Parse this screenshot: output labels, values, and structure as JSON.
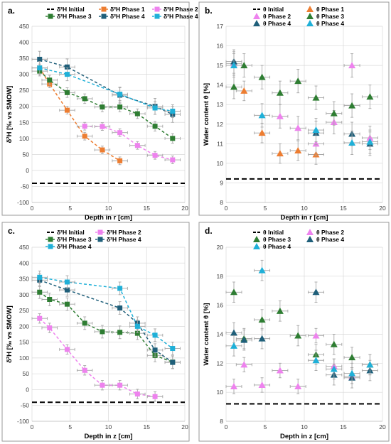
{
  "chart_data": [
    {
      "panel": "a.",
      "type": "line",
      "xlabel": "Depth in r [cm]",
      "ylabel": "δ²H [‰ vs SMOW]",
      "xlim": [
        0,
        20
      ],
      "ylim": [
        -100,
        450
      ],
      "xticks": [
        "0",
        "5",
        "10",
        "15",
        "20"
      ],
      "yticks": [
        "-100",
        "-50",
        "0",
        "50",
        "100",
        "150",
        "200",
        "250",
        "300",
        "350",
        "400",
        "450"
      ],
      "grid": true,
      "legend_position": "top",
      "initial": {
        "label": "δ²H Initial",
        "value": -40
      },
      "series": [
        {
          "name": "δ²H Phase 1",
          "color": "#ed7d31",
          "marker": "square",
          "x": [
            1,
            2.3,
            4.6,
            6.9,
            9.2,
            11.5
          ],
          "y": [
            320,
            270,
            188,
            107,
            64,
            30
          ],
          "xerr": 1,
          "yerr": 12
        },
        {
          "name": "δ²H Phase 2",
          "color": "#ee82ee",
          "marker": "square",
          "x": [
            6.9,
            9.2,
            11.5,
            13.8,
            16.1,
            18.4
          ],
          "y": [
            138,
            137,
            118,
            78,
            47,
            33
          ],
          "xerr": 1,
          "yerr": 12
        },
        {
          "name": "δ²H Phase 3",
          "color": "#2e7d32",
          "marker": "square",
          "x": [
            1,
            2.3,
            4.6,
            6.9,
            9.2,
            11.5,
            13.8,
            16.1,
            18.4
          ],
          "y": [
            310,
            282,
            243,
            224,
            198,
            198,
            177,
            138,
            100
          ],
          "xerr": 1,
          "yerr": 15
        },
        {
          "name": "δ²H Phase 4",
          "color": "#1f5f7a",
          "marker": "square",
          "x": [
            1,
            4.6,
            11.5,
            16.1,
            18.4
          ],
          "y": [
            347,
            323,
            235,
            200,
            175
          ],
          "xerr": 1,
          "yerr": 25
        },
        {
          "name": "δ²H Phase 4",
          "color": "#1fb0d8",
          "marker": "square",
          "x": [
            1,
            4.6,
            11.5,
            16.1,
            18.4
          ],
          "y": [
            320,
            300,
            238,
            195,
            185
          ],
          "xerr": 1,
          "yerr": 20
        }
      ]
    },
    {
      "panel": "b.",
      "type": "scatter",
      "xlabel": "Depth in r [cm]",
      "ylabel": "Water content θ [%]",
      "xlim": [
        0,
        20
      ],
      "ylim": [
        8,
        17
      ],
      "xticks": [
        "0",
        "5",
        "10",
        "15",
        "20"
      ],
      "yticks": [
        "8",
        "9",
        "10",
        "11",
        "12",
        "13",
        "14",
        "15",
        "16",
        "17"
      ],
      "grid": true,
      "legend_position": "top",
      "initial": {
        "label": "θ Initial",
        "value": 9.2
      },
      "series": [
        {
          "name": "θ Phase 1",
          "color": "#ed7d31",
          "marker": "triangle",
          "x": [
            2.3,
            4.6,
            6.9,
            9.2,
            11.5
          ],
          "y": [
            13.7,
            11.55,
            10.5,
            10.65,
            10.45
          ],
          "xerr": 1,
          "yerr": 0.5
        },
        {
          "name": "θ Phase 2",
          "color": "#ee82ee",
          "marker": "triangle",
          "x": [
            1,
            6.9,
            9.2,
            11.5,
            13.8,
            16.1,
            18.4
          ],
          "y": [
            15.1,
            12.4,
            11.8,
            11.0,
            12.1,
            15.0,
            11.3
          ],
          "xerr": 1,
          "yerr": 0.6
        },
        {
          "name": "θ Phase 3",
          "color": "#2e7d32",
          "marker": "triangle",
          "x": [
            1,
            2.3,
            4.6,
            6.9,
            9.2,
            11.5,
            13.8,
            16.1,
            18.4
          ],
          "y": [
            13.9,
            15.0,
            14.4,
            13.6,
            14.2,
            13.35,
            12.55,
            12.95,
            13.4
          ],
          "xerr": 1,
          "yerr": 0.6
        },
        {
          "name": "θ Phase 4",
          "color": "#1f5f7a",
          "marker": "triangle",
          "x": [
            1,
            11.5,
            16.1,
            18.4
          ],
          "y": [
            15.2,
            11.55,
            11.5,
            11.0
          ],
          "xerr": 1,
          "yerr": 0.6
        },
        {
          "name": "θ Phase 4",
          "color": "#1fb0d8",
          "marker": "triangle",
          "x": [
            1,
            4.6,
            11.5,
            16.1,
            18.4
          ],
          "y": [
            15.0,
            12.45,
            11.7,
            11.05,
            11.1
          ],
          "xerr": 1,
          "yerr": 0.6
        }
      ]
    },
    {
      "panel": "c.",
      "type": "line",
      "xlabel": "Depth in z [cm]",
      "ylabel": "δ²H [‰ vs SMOW]",
      "xlim": [
        0,
        20
      ],
      "ylim": [
        -100,
        450
      ],
      "xticks": [
        "0",
        "5",
        "10",
        "15",
        "20"
      ],
      "yticks": [
        "-100",
        "-50",
        "0",
        "50",
        "100",
        "150",
        "200",
        "250",
        "300",
        "350",
        "400",
        "450"
      ],
      "grid": true,
      "legend_position": "top",
      "initial": {
        "label": "δ²H Initial",
        "value": -40
      },
      "series": [
        {
          "name": "δ²H Phase 2",
          "color": "#ee82ee",
          "marker": "square",
          "x": [
            1,
            2.3,
            4.6,
            6.9,
            9.2,
            11.5,
            13.8,
            16.1
          ],
          "y": [
            225,
            195,
            127,
            61,
            14,
            14,
            -14,
            -22
          ],
          "xerr": 1,
          "yerr": 15
        },
        {
          "name": "δ²H Phase 3",
          "color": "#2e7d32",
          "marker": "square",
          "x": [
            1,
            2.3,
            4.6,
            6.9,
            9.2,
            11.5,
            13.8,
            16.1,
            18.4
          ],
          "y": [
            308,
            285,
            270,
            210,
            183,
            181,
            178,
            108,
            87
          ],
          "xerr": 1,
          "yerr": 20
        },
        {
          "name": "δ²H Phase 4",
          "color": "#1f5f7a",
          "marker": "square",
          "x": [
            1,
            4.6,
            11.5,
            13.8,
            16.1,
            18.4
          ],
          "y": [
            346,
            315,
            258,
            210,
            125,
            86
          ],
          "xerr": 1,
          "yerr": 20
        },
        {
          "name": "δ²H Phase 4",
          "color": "#1fb0d8",
          "marker": "square",
          "x": [
            1,
            4.6,
            11.5,
            13.8,
            16.1,
            18.4
          ],
          "y": [
            355,
            340,
            320,
            200,
            172,
            130
          ],
          "xerr": 1,
          "yerr": 20
        }
      ]
    },
    {
      "panel": "d.",
      "type": "scatter",
      "xlabel": "Depth in z [cm]",
      "ylabel": "Water content θ [%]",
      "xlim": [
        0,
        20
      ],
      "ylim": [
        8,
        20
      ],
      "xticks": [
        "0",
        "5",
        "10",
        "15",
        "20"
      ],
      "yticks": [
        "8",
        "10",
        "12",
        "14",
        "16",
        "18",
        "20"
      ],
      "grid": true,
      "legend_position": "top",
      "initial": {
        "label": "θ Initial",
        "value": 9.2
      },
      "series": [
        {
          "name": "θ Phase 2",
          "color": "#ee82ee",
          "marker": "triangle",
          "x": [
            1,
            2.3,
            4.6,
            6.9,
            9.2,
            11.5,
            13.8,
            16.1
          ],
          "y": [
            10.4,
            11.9,
            10.5,
            11.5,
            10.4,
            13.9,
            11.8,
            11.1
          ],
          "xerr": 1,
          "yerr": 0.5
        },
        {
          "name": "θ Phase 3",
          "color": "#2e7d32",
          "marker": "triangle",
          "x": [
            1,
            2.3,
            4.6,
            6.9,
            9.2,
            11.5,
            13.8,
            16.1,
            18.4
          ],
          "y": [
            16.9,
            13.7,
            15.0,
            15.6,
            13.9,
            12.6,
            13.3,
            12.4,
            11.9
          ],
          "xerr": 1,
          "yerr": 0.7
        },
        {
          "name": "θ Phase 4",
          "color": "#1f5f7a",
          "marker": "triangle",
          "x": [
            1,
            2.3,
            4.6,
            11.5,
            13.8,
            16.1,
            18.4
          ],
          "y": [
            14.1,
            13.6,
            13.7,
            16.9,
            11.2,
            11.0,
            11.5
          ],
          "xerr": 1,
          "yerr": 0.7
        },
        {
          "name": "θ Phase 4",
          "color": "#1fb0d8",
          "marker": "triangle",
          "x": [
            1,
            4.6,
            11.5,
            13.8,
            16.1,
            18.4
          ],
          "y": [
            13.2,
            18.4,
            12.2,
            11.6,
            11.3,
            11.9
          ],
          "xerr": 1,
          "yerr": 0.7
        }
      ]
    }
  ]
}
